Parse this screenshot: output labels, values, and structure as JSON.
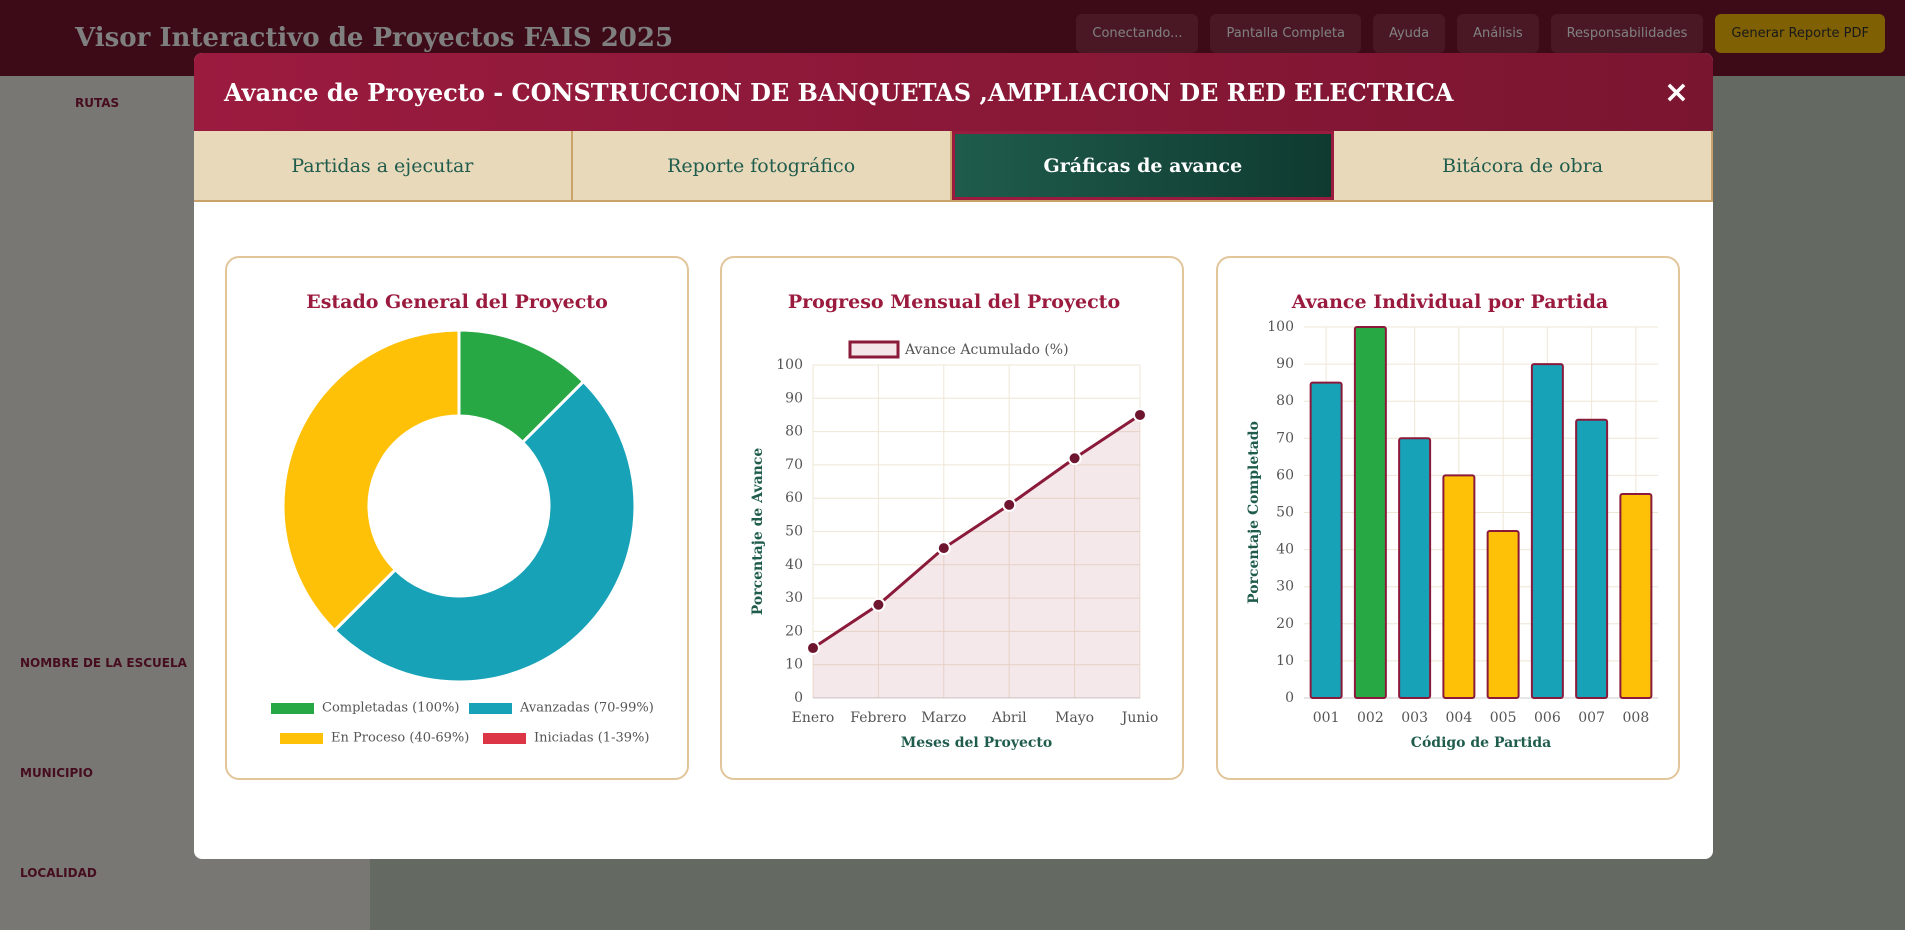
{
  "app": {
    "title": "Visor Interactivo de Proyectos FAIS 2025",
    "buttons": [
      "Conectando...",
      "Pantalla Completa",
      "Ayuda",
      "Análisis",
      "Responsabilidades",
      "Generar Reporte PDF"
    ],
    "sidebar": [
      "RUTAS",
      "NOMBRE DE LA ESCUELA",
      "MUNICIPIO",
      "LOCALIDAD"
    ]
  },
  "modal": {
    "title": "Avance de Proyecto - CONSTRUCCION DE BANQUETAS ,AMPLIACION DE RED ELECTRICA",
    "close": "×",
    "tabs": [
      "Partidas a ejecutar",
      "Reporte fotográfico",
      "Gráficas de avance",
      "Bitácora de obra"
    ],
    "active_tab": 2
  },
  "chart_data": [
    {
      "type": "doughnut",
      "title": "Estado General del Proyecto",
      "categories": [
        "Completadas (100%)",
        "Avanzadas (70-99%)",
        "En Proceso (40-69%)",
        "Iniciadas (1-39%)"
      ],
      "values": [
        1,
        4,
        3,
        0
      ],
      "colors": [
        "#28a745",
        "#17a2b8",
        "#ffc107",
        "#dc3545"
      ]
    },
    {
      "type": "line",
      "title": "Progreso Mensual del Proyecto",
      "x_label": "Meses del Proyecto",
      "y_label": "Porcentaje de Avance",
      "categories": [
        "Enero",
        "Febrero",
        "Marzo",
        "Abril",
        "Mayo",
        "Junio"
      ],
      "series": [
        {
          "name": "Avance Acumulado (%)",
          "color": "#8b1a3a",
          "values": [
            15,
            28,
            45,
            58,
            72,
            85
          ]
        }
      ],
      "ylim": [
        0,
        100
      ],
      "yticks": [
        0,
        10,
        20,
        30,
        40,
        50,
        60,
        70,
        80,
        90,
        100
      ],
      "grid": true
    },
    {
      "type": "bar",
      "title": "Avance Individual por Partida",
      "x_label": "Código de Partida",
      "y_label": "Porcentaje Completado",
      "categories": [
        "001",
        "002",
        "003",
        "004",
        "005",
        "006",
        "007",
        "008"
      ],
      "values": [
        85,
        100,
        70,
        60,
        45,
        90,
        75,
        55
      ],
      "colors": [
        "#17a2b8",
        "#28a745",
        "#17a2b8",
        "#ffc107",
        "#ffc107",
        "#17a2b8",
        "#17a2b8",
        "#ffc107"
      ],
      "ylim": [
        0,
        100
      ],
      "yticks": [
        0,
        10,
        20,
        30,
        40,
        50,
        60,
        70,
        80,
        90,
        100
      ],
      "grid": true
    }
  ]
}
